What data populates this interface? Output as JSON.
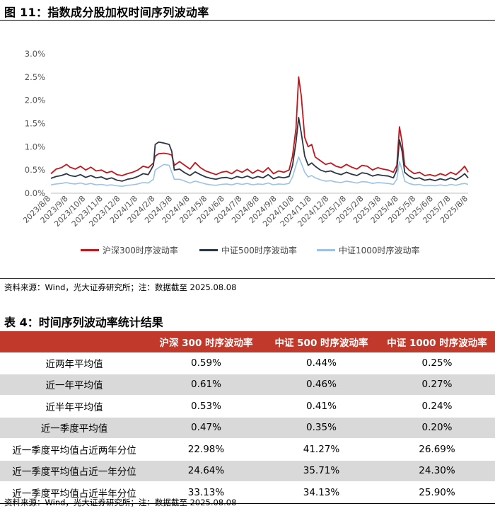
{
  "figure": {
    "title": "图 11：指数成分股加权时间序列波动率",
    "source": "资料来源：Wind，光大证券研究所；注：数据截至 2025.08.08"
  },
  "chart_data": {
    "type": "line",
    "ylim": [
      0,
      3.0
    ],
    "y_ticks": [
      "0.0%",
      "0.5%",
      "1.0%",
      "1.5%",
      "2.0%",
      "2.5%",
      "3.0%"
    ],
    "y_tick_values": [
      0,
      0.5,
      1.0,
      1.5,
      2.0,
      2.5,
      3.0
    ],
    "x_tick_labels": [
      "2023/8/8",
      "2023/9/8",
      "2023/10/8",
      "2023/11/8",
      "2023/12/8",
      "2024/1/8",
      "2024/2/8",
      "2024/3/8",
      "2024/4/8",
      "2024/5/8",
      "2024/6/8",
      "2024/7/8",
      "2024/8/8",
      "2024/9/8",
      "2024/10/8",
      "2024/11/8",
      "2024/12/8",
      "2025/1/8",
      "2025/2/8",
      "2025/3/8",
      "2025/4/8",
      "2025/5/8",
      "2025/6/8",
      "2025/7/8",
      "2025/8/8"
    ],
    "x_range": [
      0,
      24
    ],
    "series": [
      {
        "name": "沪深300时序波动率",
        "color": "#c0161c",
        "points": [
          [
            0,
            0.42
          ],
          [
            0.3,
            0.52
          ],
          [
            0.6,
            0.55
          ],
          [
            0.9,
            0.62
          ],
          [
            1.1,
            0.56
          ],
          [
            1.4,
            0.52
          ],
          [
            1.7,
            0.58
          ],
          [
            2.0,
            0.5
          ],
          [
            2.3,
            0.56
          ],
          [
            2.6,
            0.48
          ],
          [
            2.9,
            0.5
          ],
          [
            3.2,
            0.44
          ],
          [
            3.5,
            0.47
          ],
          [
            3.8,
            0.4
          ],
          [
            4.1,
            0.38
          ],
          [
            4.4,
            0.42
          ],
          [
            4.7,
            0.45
          ],
          [
            5.0,
            0.5
          ],
          [
            5.3,
            0.58
          ],
          [
            5.6,
            0.55
          ],
          [
            5.9,
            0.65
          ],
          [
            6.0,
            0.8
          ],
          [
            6.2,
            0.85
          ],
          [
            6.5,
            0.86
          ],
          [
            6.8,
            0.84
          ],
          [
            6.95,
            0.82
          ],
          [
            7.1,
            0.6
          ],
          [
            7.4,
            0.68
          ],
          [
            7.7,
            0.6
          ],
          [
            8.0,
            0.52
          ],
          [
            8.3,
            0.66
          ],
          [
            8.6,
            0.55
          ],
          [
            8.9,
            0.48
          ],
          [
            9.2,
            0.44
          ],
          [
            9.5,
            0.4
          ],
          [
            9.8,
            0.45
          ],
          [
            10.1,
            0.47
          ],
          [
            10.4,
            0.42
          ],
          [
            10.7,
            0.5
          ],
          [
            11.0,
            0.45
          ],
          [
            11.3,
            0.52
          ],
          [
            11.6,
            0.43
          ],
          [
            11.9,
            0.5
          ],
          [
            12.2,
            0.45
          ],
          [
            12.5,
            0.55
          ],
          [
            12.8,
            0.42
          ],
          [
            13.1,
            0.48
          ],
          [
            13.4,
            0.45
          ],
          [
            13.7,
            0.5
          ],
          [
            13.9,
            0.8
          ],
          [
            14.1,
            1.4
          ],
          [
            14.25,
            2.5
          ],
          [
            14.4,
            2.1
          ],
          [
            14.6,
            1.2
          ],
          [
            14.8,
            1.0
          ],
          [
            15.0,
            1.05
          ],
          [
            15.2,
            0.78
          ],
          [
            15.5,
            0.7
          ],
          [
            15.8,
            0.62
          ],
          [
            16.1,
            0.65
          ],
          [
            16.4,
            0.58
          ],
          [
            16.7,
            0.55
          ],
          [
            17.0,
            0.62
          ],
          [
            17.3,
            0.56
          ],
          [
            17.6,
            0.52
          ],
          [
            17.9,
            0.6
          ],
          [
            18.2,
            0.58
          ],
          [
            18.5,
            0.5
          ],
          [
            18.8,
            0.55
          ],
          [
            19.1,
            0.52
          ],
          [
            19.4,
            0.5
          ],
          [
            19.7,
            0.45
          ],
          [
            19.9,
            0.6
          ],
          [
            20.05,
            1.43
          ],
          [
            20.2,
            1.1
          ],
          [
            20.35,
            0.6
          ],
          [
            20.6,
            0.5
          ],
          [
            20.9,
            0.42
          ],
          [
            21.2,
            0.45
          ],
          [
            21.5,
            0.38
          ],
          [
            21.8,
            0.4
          ],
          [
            22.1,
            0.37
          ],
          [
            22.4,
            0.42
          ],
          [
            22.7,
            0.38
          ],
          [
            23.0,
            0.45
          ],
          [
            23.3,
            0.4
          ],
          [
            23.6,
            0.5
          ],
          [
            23.8,
            0.58
          ],
          [
            24.0,
            0.45
          ]
        ]
      },
      {
        "name": "中证500时序波动率",
        "color": "#2b3643",
        "points": [
          [
            0,
            0.32
          ],
          [
            0.3,
            0.36
          ],
          [
            0.6,
            0.38
          ],
          [
            0.9,
            0.42
          ],
          [
            1.1,
            0.38
          ],
          [
            1.4,
            0.36
          ],
          [
            1.7,
            0.4
          ],
          [
            2.0,
            0.34
          ],
          [
            2.3,
            0.38
          ],
          [
            2.6,
            0.33
          ],
          [
            2.9,
            0.35
          ],
          [
            3.2,
            0.3
          ],
          [
            3.5,
            0.33
          ],
          [
            3.8,
            0.28
          ],
          [
            4.1,
            0.26
          ],
          [
            4.4,
            0.3
          ],
          [
            4.7,
            0.32
          ],
          [
            5.0,
            0.36
          ],
          [
            5.3,
            0.42
          ],
          [
            5.6,
            0.4
          ],
          [
            5.9,
            0.6
          ],
          [
            6.0,
            1.05
          ],
          [
            6.2,
            1.1
          ],
          [
            6.5,
            1.08
          ],
          [
            6.8,
            1.05
          ],
          [
            6.95,
            0.9
          ],
          [
            7.1,
            0.5
          ],
          [
            7.4,
            0.52
          ],
          [
            7.7,
            0.44
          ],
          [
            8.0,
            0.38
          ],
          [
            8.3,
            0.46
          ],
          [
            8.6,
            0.4
          ],
          [
            8.9,
            0.35
          ],
          [
            9.2,
            0.32
          ],
          [
            9.5,
            0.3
          ],
          [
            9.8,
            0.33
          ],
          [
            10.1,
            0.34
          ],
          [
            10.4,
            0.31
          ],
          [
            10.7,
            0.36
          ],
          [
            11.0,
            0.33
          ],
          [
            11.3,
            0.37
          ],
          [
            11.6,
            0.32
          ],
          [
            11.9,
            0.36
          ],
          [
            12.2,
            0.33
          ],
          [
            12.5,
            0.4
          ],
          [
            12.8,
            0.31
          ],
          [
            13.1,
            0.35
          ],
          [
            13.4,
            0.33
          ],
          [
            13.7,
            0.36
          ],
          [
            13.9,
            0.6
          ],
          [
            14.1,
            1.1
          ],
          [
            14.25,
            1.63
          ],
          [
            14.4,
            1.3
          ],
          [
            14.6,
            0.8
          ],
          [
            14.8,
            0.6
          ],
          [
            15.0,
            0.65
          ],
          [
            15.2,
            0.58
          ],
          [
            15.5,
            0.5
          ],
          [
            15.8,
            0.46
          ],
          [
            16.1,
            0.48
          ],
          [
            16.4,
            0.43
          ],
          [
            16.7,
            0.4
          ],
          [
            17.0,
            0.45
          ],
          [
            17.3,
            0.41
          ],
          [
            17.6,
            0.38
          ],
          [
            17.9,
            0.44
          ],
          [
            18.2,
            0.42
          ],
          [
            18.5,
            0.37
          ],
          [
            18.8,
            0.4
          ],
          [
            19.1,
            0.38
          ],
          [
            19.4,
            0.37
          ],
          [
            19.7,
            0.33
          ],
          [
            19.9,
            0.5
          ],
          [
            20.05,
            1.15
          ],
          [
            20.2,
            0.9
          ],
          [
            20.35,
            0.45
          ],
          [
            20.6,
            0.37
          ],
          [
            20.9,
            0.31
          ],
          [
            21.2,
            0.33
          ],
          [
            21.5,
            0.28
          ],
          [
            21.8,
            0.3
          ],
          [
            22.1,
            0.27
          ],
          [
            22.4,
            0.31
          ],
          [
            22.7,
            0.28
          ],
          [
            23.0,
            0.33
          ],
          [
            23.3,
            0.29
          ],
          [
            23.6,
            0.36
          ],
          [
            23.8,
            0.42
          ],
          [
            24.0,
            0.33
          ]
        ]
      },
      {
        "name": "中证1000时序波动率",
        "color": "#9cc3e5",
        "points": [
          [
            0,
            0.18
          ],
          [
            0.3,
            0.2
          ],
          [
            0.6,
            0.21
          ],
          [
            0.9,
            0.23
          ],
          [
            1.1,
            0.21
          ],
          [
            1.4,
            0.2
          ],
          [
            1.7,
            0.22
          ],
          [
            2.0,
            0.19
          ],
          [
            2.3,
            0.21
          ],
          [
            2.6,
            0.18
          ],
          [
            2.9,
            0.19
          ],
          [
            3.2,
            0.17
          ],
          [
            3.5,
            0.18
          ],
          [
            3.8,
            0.16
          ],
          [
            4.1,
            0.15
          ],
          [
            4.4,
            0.17
          ],
          [
            4.7,
            0.18
          ],
          [
            5.0,
            0.2
          ],
          [
            5.3,
            0.23
          ],
          [
            5.6,
            0.22
          ],
          [
            5.9,
            0.3
          ],
          [
            6.0,
            0.5
          ],
          [
            6.2,
            0.55
          ],
          [
            6.5,
            0.62
          ],
          [
            6.8,
            0.6
          ],
          [
            6.95,
            0.45
          ],
          [
            7.1,
            0.3
          ],
          [
            7.4,
            0.3
          ],
          [
            7.7,
            0.26
          ],
          [
            8.0,
            0.22
          ],
          [
            8.3,
            0.26
          ],
          [
            8.6,
            0.23
          ],
          [
            8.9,
            0.2
          ],
          [
            9.2,
            0.18
          ],
          [
            9.5,
            0.17
          ],
          [
            9.8,
            0.19
          ],
          [
            10.1,
            0.2
          ],
          [
            10.4,
            0.18
          ],
          [
            10.7,
            0.21
          ],
          [
            11.0,
            0.19
          ],
          [
            11.3,
            0.21
          ],
          [
            11.6,
            0.18
          ],
          [
            11.9,
            0.2
          ],
          [
            12.2,
            0.19
          ],
          [
            12.5,
            0.22
          ],
          [
            12.8,
            0.18
          ],
          [
            13.1,
            0.2
          ],
          [
            13.4,
            0.19
          ],
          [
            13.7,
            0.21
          ],
          [
            13.9,
            0.35
          ],
          [
            14.1,
            0.6
          ],
          [
            14.25,
            0.78
          ],
          [
            14.4,
            0.65
          ],
          [
            14.6,
            0.45
          ],
          [
            14.8,
            0.35
          ],
          [
            15.0,
            0.38
          ],
          [
            15.2,
            0.33
          ],
          [
            15.5,
            0.29
          ],
          [
            15.8,
            0.26
          ],
          [
            16.1,
            0.27
          ],
          [
            16.4,
            0.24
          ],
          [
            16.7,
            0.23
          ],
          [
            17.0,
            0.26
          ],
          [
            17.3,
            0.24
          ],
          [
            17.6,
            0.22
          ],
          [
            17.9,
            0.25
          ],
          [
            18.2,
            0.24
          ],
          [
            18.5,
            0.21
          ],
          [
            18.8,
            0.23
          ],
          [
            19.1,
            0.22
          ],
          [
            19.4,
            0.21
          ],
          [
            19.7,
            0.19
          ],
          [
            19.9,
            0.3
          ],
          [
            20.05,
            0.68
          ],
          [
            20.2,
            0.5
          ],
          [
            20.35,
            0.26
          ],
          [
            20.6,
            0.21
          ],
          [
            20.9,
            0.18
          ],
          [
            21.2,
            0.19
          ],
          [
            21.5,
            0.16
          ],
          [
            21.8,
            0.17
          ],
          [
            22.1,
            0.16
          ],
          [
            22.4,
            0.18
          ],
          [
            22.7,
            0.16
          ],
          [
            23.0,
            0.19
          ],
          [
            23.3,
            0.17
          ],
          [
            23.6,
            0.2
          ],
          [
            23.8,
            0.21
          ],
          [
            24.0,
            0.19
          ]
        ]
      }
    ]
  },
  "legend": [
    "沪深300时序波动率",
    "中证500时序波动率",
    "中证1000时序波动率"
  ],
  "table": {
    "title": "表 4：时间序列波动率统计结果",
    "headers": [
      "",
      "沪深 300 时序波动率",
      "中证 500 时序波动率",
      "中证 1000 时序波动率"
    ],
    "rows": [
      [
        "近两年平均值",
        "0.59%",
        "0.44%",
        "0.25%"
      ],
      [
        "近一年平均值",
        "0.61%",
        "0.46%",
        "0.27%"
      ],
      [
        "近半年平均值",
        "0.53%",
        "0.41%",
        "0.24%"
      ],
      [
        "近一季度平均值",
        "0.47%",
        "0.35%",
        "0.20%"
      ],
      [
        "近一季度平均值占近两年分位",
        "22.98%",
        "41.27%",
        "26.69%"
      ],
      [
        "近一季度平均值占近一年分位",
        "24.64%",
        "35.71%",
        "24.30%"
      ],
      [
        "近一季度平均值占近半年分位",
        "33.13%",
        "34.13%",
        "25.90%"
      ]
    ],
    "source": "资料来源：Wind，光大证券研究所；注：数据截至 2025.08.08"
  }
}
